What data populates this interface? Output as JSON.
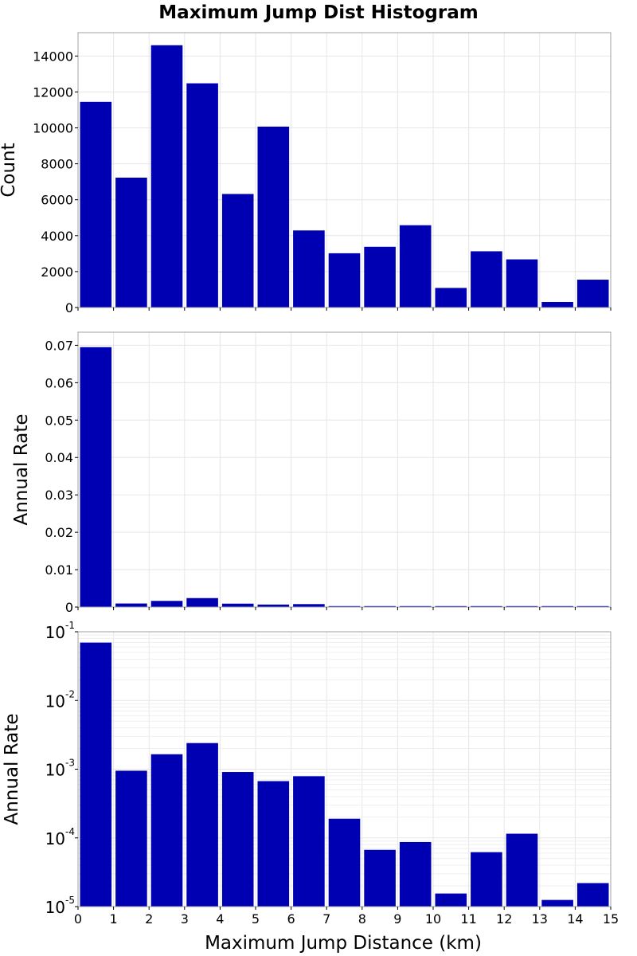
{
  "chart_data": {
    "type": "bar",
    "title": "Maximum Jump Dist Histogram",
    "xlabel": "Maximum Jump Distance (km)",
    "xlim": [
      0,
      15
    ],
    "xticks": [
      "0",
      "1",
      "2",
      "3",
      "4",
      "5",
      "6",
      "7",
      "8",
      "9",
      "10",
      "11",
      "12",
      "13",
      "14",
      "15"
    ],
    "bin_starts": [
      0,
      1,
      2,
      3,
      4,
      5,
      6,
      7,
      8,
      9,
      10,
      11,
      12,
      13,
      14
    ],
    "bar_color": "#0000b3",
    "grid": true,
    "panels": [
      {
        "ylabel": "Count",
        "scale": "linear",
        "ylim": [
          0,
          15300
        ],
        "yticks": [
          "0",
          "2000",
          "4000",
          "6000",
          "8000",
          "10000",
          "12000",
          "14000"
        ],
        "values": [
          11450,
          7230,
          14600,
          12480,
          6320,
          10070,
          4290,
          3020,
          3380,
          4580,
          1090,
          3130,
          2680,
          310,
          1550
        ]
      },
      {
        "ylabel": "Annual Rate",
        "scale": "linear",
        "ylim": [
          0,
          0.0735
        ],
        "yticks": [
          "0",
          "0.01",
          "0.02",
          "0.03",
          "0.04",
          "0.05",
          "0.06",
          "0.07"
        ],
        "values": [
          0.0695,
          0.00095,
          0.00165,
          0.0024,
          0.00091,
          0.00067,
          0.00079,
          0.00019,
          6.7e-05,
          8.7e-05,
          1.55e-05,
          6.2e-05,
          0.000115,
          1.25e-05,
          2.2e-05
        ]
      },
      {
        "ylabel": "Annual Rate",
        "scale": "log",
        "ylim": [
          1e-05,
          0.1
        ],
        "ytick_base": "10",
        "ytick_exponents": [
          "-5",
          "-4",
          "-3",
          "-2",
          "-1"
        ],
        "values": [
          0.0695,
          0.00095,
          0.00165,
          0.0024,
          0.00091,
          0.00067,
          0.00079,
          0.00019,
          6.7e-05,
          8.7e-05,
          1.55e-05,
          6.2e-05,
          0.000115,
          1.25e-05,
          2.2e-05
        ]
      }
    ]
  }
}
